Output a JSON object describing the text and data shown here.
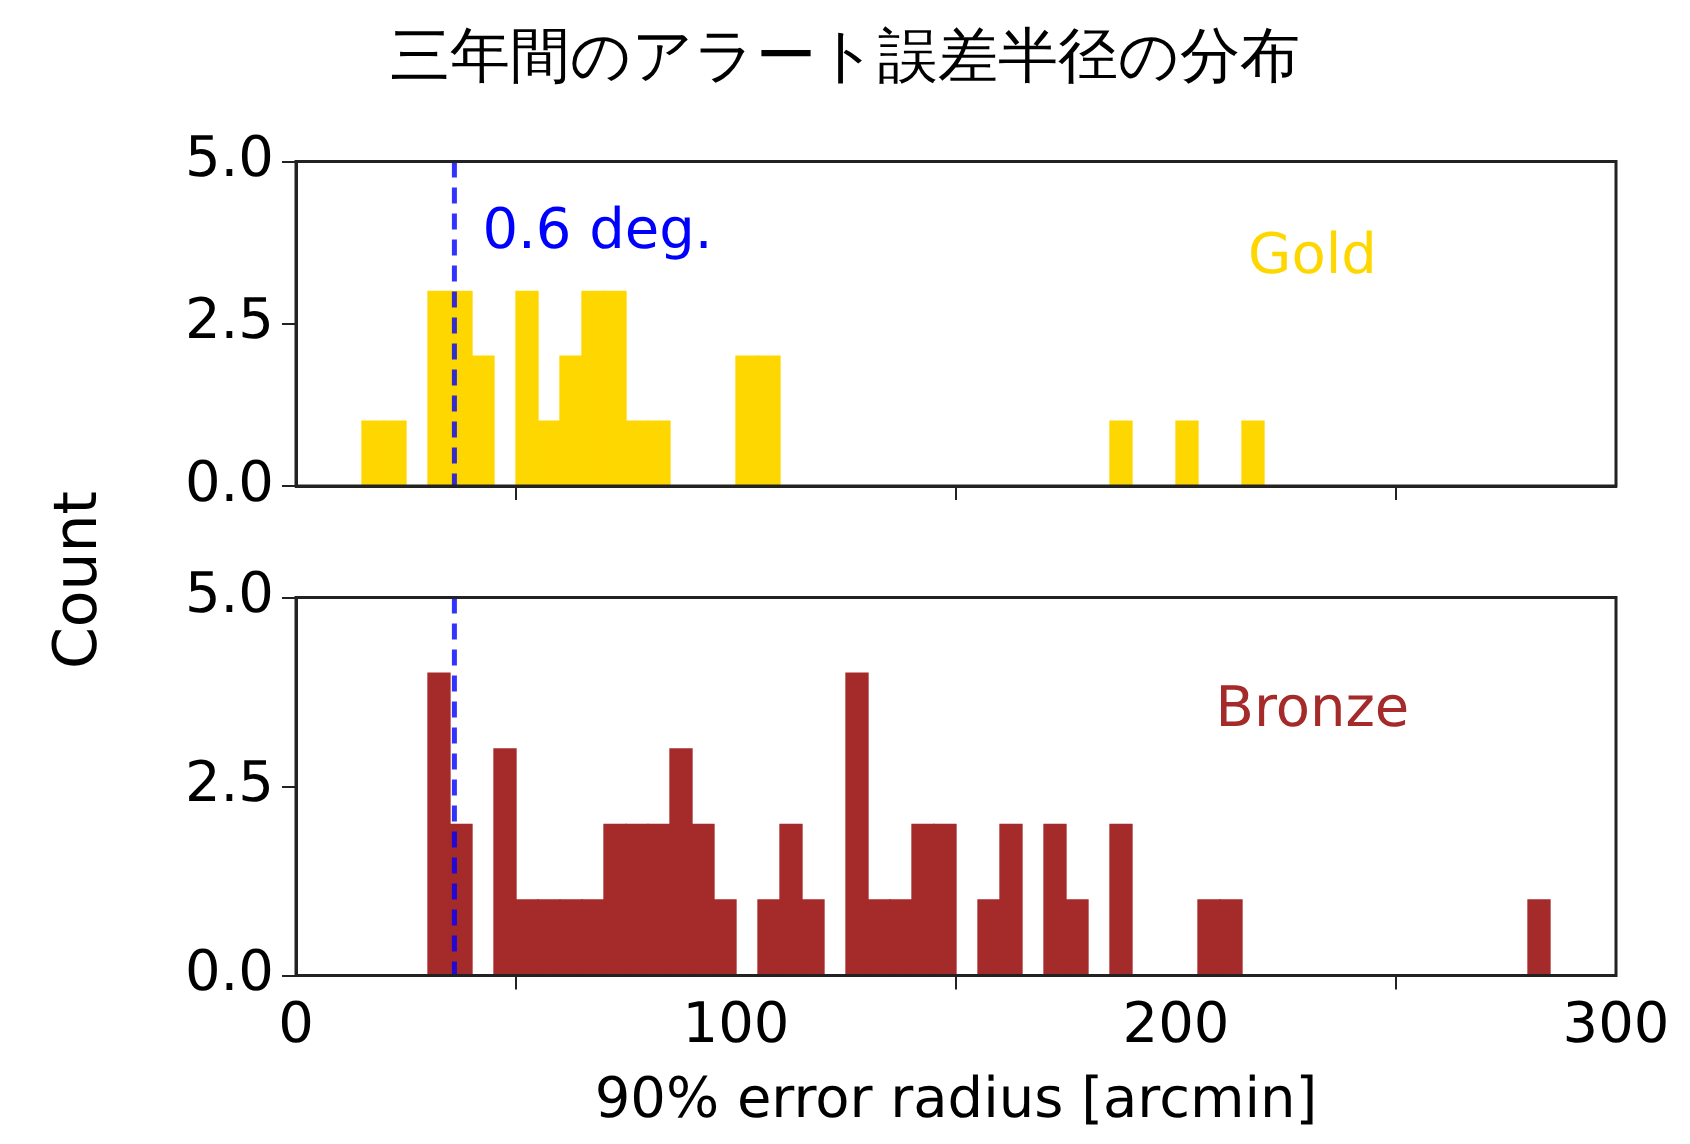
{
  "chart_data": [
    {
      "type": "histogram",
      "title": "三年間のアラート誤差半径の分布",
      "bins": [
        15,
        20,
        25,
        30,
        35,
        40,
        45,
        50,
        55,
        60,
        65,
        70,
        75,
        80,
        85,
        90,
        95,
        100,
        105,
        110,
        115,
        120,
        125,
        130,
        135,
        140,
        145,
        150,
        155,
        160,
        165,
        170,
        175,
        180,
        185,
        190,
        195,
        200,
        205,
        210,
        215,
        220
      ],
      "series": [
        {
          "name": "Gold",
          "color": "#ffd700",
          "values": [
            1,
            1,
            0,
            3,
            3,
            2,
            0,
            3,
            1,
            2,
            3,
            3,
            1,
            1,
            0,
            0,
            0,
            2,
            2,
            0,
            0,
            0,
            0,
            0,
            0,
            0,
            0,
            0,
            0,
            0,
            0,
            0,
            0,
            0,
            1,
            0,
            0,
            1,
            0,
            0,
            1
          ]
        }
      ],
      "xlim": [
        0,
        300
      ],
      "xticks": [
        0,
        100,
        200,
        300
      ],
      "ylim": [
        0,
        5
      ],
      "yticks": [
        {
          "value": 0,
          "label": "0.0"
        },
        {
          "value": 2.5,
          "label": "2.5"
        },
        {
          "value": 5,
          "label": "5.0"
        }
      ],
      "tick_labels": "y",
      "ref_lines": [
        {
          "axis": "x",
          "value": 36,
          "label": "0.6 deg.",
          "color": "#0000ff",
          "line_style": "dashed"
        }
      ]
    },
    {
      "type": "histogram",
      "bins": [
        30,
        35,
        40,
        45,
        50,
        55,
        60,
        65,
        70,
        75,
        80,
        85,
        90,
        95,
        100,
        105,
        110,
        115,
        120,
        125,
        130,
        135,
        140,
        145,
        150,
        155,
        160,
        165,
        170,
        175,
        180,
        185,
        190,
        195,
        200,
        205,
        210,
        215,
        220,
        225,
        230,
        235,
        240,
        245,
        250,
        255,
        260,
        265,
        270,
        275,
        280,
        285
      ],
      "series": [
        {
          "name": "Bronze",
          "color": "#a52a2a",
          "values": [
            4,
            2,
            0,
            3,
            1,
            1,
            1,
            1,
            2,
            2,
            2,
            3,
            2,
            1,
            0,
            1,
            2,
            1,
            0,
            4,
            1,
            1,
            2,
            2,
            0,
            1,
            2,
            0,
            2,
            1,
            0,
            2,
            0,
            0,
            0,
            1,
            1,
            0,
            0,
            0,
            0,
            0,
            0,
            0,
            0,
            0,
            0,
            0,
            0,
            0,
            1
          ]
        }
      ],
      "xlabel": "90% error radius [arcmin]",
      "ylabel": "Count",
      "xlim": [
        0,
        300
      ],
      "xticks": [
        0,
        100,
        200,
        300
      ],
      "ylim": [
        0,
        5
      ],
      "yticks": [
        {
          "value": 0,
          "label": "0.0"
        },
        {
          "value": 2.5,
          "label": "2.5"
        },
        {
          "value": 5,
          "label": "5.0"
        }
      ],
      "ref_lines": [
        {
          "axis": "x",
          "value": 36,
          "color": "#0000ff",
          "line_style": "dashed"
        }
      ]
    }
  ]
}
